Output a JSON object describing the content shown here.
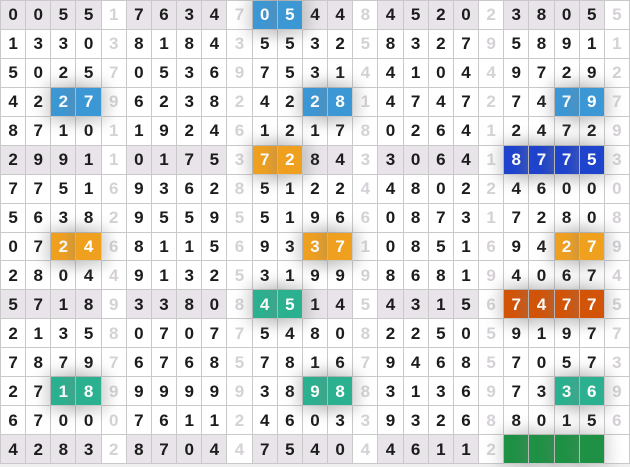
{
  "board": {
    "columns": 25,
    "light_columns": [
      4,
      9,
      14,
      19,
      24
    ],
    "shaded_rows": [
      0,
      5,
      10,
      15
    ],
    "rows": [
      [
        "0",
        "0",
        "5",
        "5",
        "1",
        "7",
        "6",
        "3",
        "4",
        "7",
        "0",
        "5",
        "4",
        "4",
        "8",
        "4",
        "5",
        "2",
        "0",
        "2",
        "3",
        "8",
        "0",
        "5",
        "5"
      ],
      [
        "1",
        "3",
        "3",
        "0",
        "3",
        "8",
        "1",
        "8",
        "4",
        "3",
        "5",
        "5",
        "3",
        "2",
        "5",
        "8",
        "3",
        "2",
        "7",
        "9",
        "5",
        "8",
        "9",
        "1",
        "1"
      ],
      [
        "5",
        "0",
        "2",
        "5",
        "7",
        "0",
        "5",
        "3",
        "6",
        "9",
        "7",
        "5",
        "3",
        "1",
        "4",
        "4",
        "1",
        "0",
        "4",
        "4",
        "9",
        "7",
        "2",
        "9",
        "2"
      ],
      [
        "4",
        "2",
        "2",
        "7",
        "9",
        "6",
        "2",
        "3",
        "8",
        "2",
        "4",
        "2",
        "2",
        "8",
        "1",
        "4",
        "7",
        "4",
        "7",
        "2",
        "7",
        "4",
        "7",
        "9",
        "7"
      ],
      [
        "8",
        "7",
        "1",
        "0",
        "1",
        "1",
        "9",
        "2",
        "4",
        "6",
        "1",
        "2",
        "1",
        "7",
        "8",
        "0",
        "2",
        "6",
        "4",
        "1",
        "2",
        "4",
        "7",
        "2",
        "9"
      ],
      [
        "2",
        "9",
        "9",
        "1",
        "1",
        "0",
        "1",
        "7",
        "5",
        "3",
        "7",
        "2",
        "8",
        "4",
        "3",
        "3",
        "0",
        "6",
        "4",
        "1",
        "8",
        "7",
        "7",
        "5",
        "3"
      ],
      [
        "7",
        "7",
        "5",
        "1",
        "6",
        "9",
        "3",
        "6",
        "2",
        "8",
        "5",
        "1",
        "2",
        "2",
        "4",
        "4",
        "8",
        "0",
        "2",
        "2",
        "4",
        "6",
        "0",
        "0",
        "0"
      ],
      [
        "5",
        "6",
        "3",
        "8",
        "2",
        "9",
        "5",
        "5",
        "9",
        "5",
        "5",
        "1",
        "9",
        "6",
        "6",
        "0",
        "8",
        "7",
        "3",
        "1",
        "7",
        "2",
        "8",
        "0",
        "8"
      ],
      [
        "0",
        "7",
        "2",
        "4",
        "6",
        "8",
        "1",
        "1",
        "5",
        "6",
        "9",
        "3",
        "3",
        "7",
        "1",
        "0",
        "8",
        "5",
        "1",
        "6",
        "9",
        "4",
        "2",
        "7",
        "9"
      ],
      [
        "2",
        "8",
        "0",
        "4",
        "4",
        "9",
        "1",
        "3",
        "2",
        "5",
        "3",
        "1",
        "9",
        "9",
        "9",
        "8",
        "6",
        "8",
        "1",
        "9",
        "4",
        "0",
        "6",
        "7",
        "4"
      ],
      [
        "5",
        "7",
        "1",
        "8",
        "9",
        "3",
        "3",
        "8",
        "0",
        "8",
        "4",
        "5",
        "1",
        "4",
        "5",
        "4",
        "3",
        "1",
        "5",
        "6",
        "7",
        "4",
        "7",
        "7",
        "5"
      ],
      [
        "2",
        "1",
        "3",
        "5",
        "8",
        "0",
        "7",
        "0",
        "7",
        "7",
        "5",
        "4",
        "8",
        "0",
        "8",
        "2",
        "2",
        "5",
        "0",
        "5",
        "9",
        "1",
        "9",
        "7",
        "7"
      ],
      [
        "7",
        "8",
        "7",
        "9",
        "7",
        "6",
        "7",
        "6",
        "8",
        "5",
        "7",
        "8",
        "1",
        "6",
        "7",
        "9",
        "4",
        "6",
        "8",
        "5",
        "7",
        "0",
        "5",
        "7",
        "3"
      ],
      [
        "2",
        "7",
        "1",
        "8",
        "9",
        "9",
        "9",
        "9",
        "9",
        "9",
        "3",
        "8",
        "9",
        "8",
        "8",
        "3",
        "1",
        "3",
        "6",
        "9",
        "7",
        "3",
        "3",
        "6",
        "9"
      ],
      [
        "6",
        "7",
        "0",
        "0",
        "0",
        "7",
        "6",
        "1",
        "1",
        "2",
        "4",
        "6",
        "0",
        "3",
        "3",
        "9",
        "3",
        "2",
        "6",
        "8",
        "8",
        "0",
        "1",
        "5",
        "6"
      ],
      [
        "4",
        "2",
        "8",
        "3",
        "2",
        "8",
        "7",
        "0",
        "4",
        "4",
        "7",
        "5",
        "4",
        "0",
        "4",
        "4",
        "6",
        "1",
        "1",
        "2",
        "",
        "",
        "",
        "",
        ""
      ]
    ],
    "highlights": [
      {
        "row": 0,
        "cols": [
          10,
          11
        ],
        "color": "blue"
      },
      {
        "row": 3,
        "cols": [
          2,
          3
        ],
        "color": "blue"
      },
      {
        "row": 3,
        "cols": [
          12,
          13
        ],
        "color": "blue"
      },
      {
        "row": 3,
        "cols": [
          22,
          23
        ],
        "color": "blue"
      },
      {
        "row": 5,
        "cols": [
          10,
          11
        ],
        "color": "orange"
      },
      {
        "row": 5,
        "cols": [
          20,
          21,
          22,
          23
        ],
        "color": "darkblue"
      },
      {
        "row": 8,
        "cols": [
          2,
          3
        ],
        "color": "orange"
      },
      {
        "row": 8,
        "cols": [
          12,
          13
        ],
        "color": "orange"
      },
      {
        "row": 8,
        "cols": [
          22,
          23
        ],
        "color": "orange"
      },
      {
        "row": 10,
        "cols": [
          10,
          11
        ],
        "color": "teal"
      },
      {
        "row": 10,
        "cols": [
          20,
          21,
          22,
          23
        ],
        "color": "darkorange"
      },
      {
        "row": 13,
        "cols": [
          2,
          3
        ],
        "color": "teal"
      },
      {
        "row": 13,
        "cols": [
          12,
          13
        ],
        "color": "teal"
      },
      {
        "row": 13,
        "cols": [
          22,
          23
        ],
        "color": "teal"
      },
      {
        "row": 15,
        "cols": [
          20,
          21,
          22,
          23
        ],
        "color": "green"
      }
    ],
    "colors": {
      "blue": "#3c97d5",
      "darkblue": "#1e43cd",
      "orange": "#f0a01f",
      "darkorange": "#d25408",
      "teal": "#2bb18f",
      "green": "#1e9144",
      "shaded_row_bg": "#e8e4e9",
      "dark_digit": "#1c1c1c",
      "light_digit": "#d5d1d6",
      "grid_line": "#c9c9c9"
    }
  }
}
